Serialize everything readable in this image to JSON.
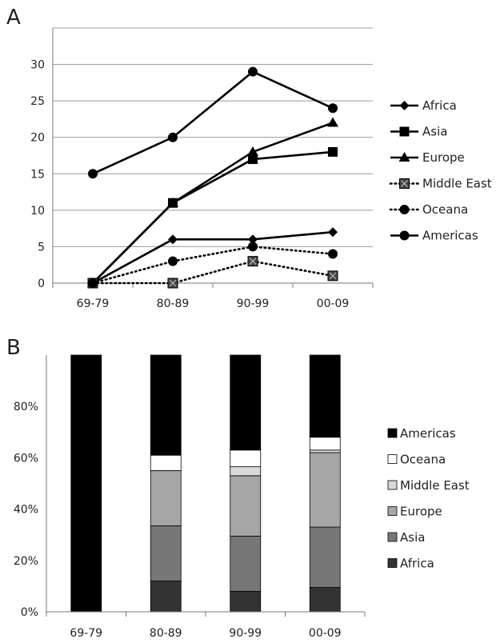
{
  "chart_data": [
    {
      "type": "line",
      "panel_label": "A",
      "categories": [
        "69-79",
        "80-89",
        "90-99",
        "00-09"
      ],
      "ylim": [
        0,
        35
      ],
      "yticks": [
        0,
        5,
        10,
        15,
        20,
        25,
        30
      ],
      "grid": true,
      "legend_position": "right",
      "series": [
        {
          "name": "Africa",
          "marker": "diamond",
          "dash": "solid",
          "values": [
            0,
            6,
            6,
            7
          ]
        },
        {
          "name": "Asia",
          "marker": "square",
          "dash": "solid",
          "values": [
            0,
            11,
            17,
            18
          ]
        },
        {
          "name": "Europe",
          "marker": "triangle",
          "dash": "solid",
          "values": [
            0,
            11,
            18,
            22
          ]
        },
        {
          "name": "Middle East",
          "marker": "xsquare",
          "dash": "dotted",
          "values": [
            0,
            0,
            3,
            1
          ]
        },
        {
          "name": "Oceana",
          "marker": "circle",
          "dash": "dotted",
          "values": [
            0,
            3,
            5,
            4
          ]
        },
        {
          "name": "Americas",
          "marker": "circle",
          "dash": "solid",
          "values": [
            15,
            20,
            29,
            24
          ]
        }
      ]
    },
    {
      "type": "bar",
      "stacked": "percent",
      "panel_label": "B",
      "categories": [
        "69-79",
        "80-89",
        "90-99",
        "00-09"
      ],
      "ylim": [
        0,
        100
      ],
      "yticks": [
        "0%",
        "20%",
        "40%",
        "60%",
        "80%"
      ],
      "grid": false,
      "legend_position": "right",
      "series": [
        {
          "name": "Africa",
          "color": "#333333",
          "values": [
            0,
            12,
            8,
            9.5
          ]
        },
        {
          "name": "Asia",
          "color": "#777777",
          "values": [
            0,
            21.5,
            21.5,
            23.5
          ]
        },
        {
          "name": "Europe",
          "color": "#a6a6a6",
          "values": [
            0,
            21.5,
            23.5,
            29
          ]
        },
        {
          "name": "Middle East",
          "color": "#d9d9d9",
          "values": [
            0,
            0,
            3.5,
            1
          ]
        },
        {
          "name": "Oceana",
          "color": "#ffffff",
          "values": [
            0,
            6,
            6.5,
            5
          ]
        },
        {
          "name": "Americas",
          "color": "#000000",
          "values": [
            100,
            39,
            37,
            32
          ]
        }
      ]
    }
  ]
}
